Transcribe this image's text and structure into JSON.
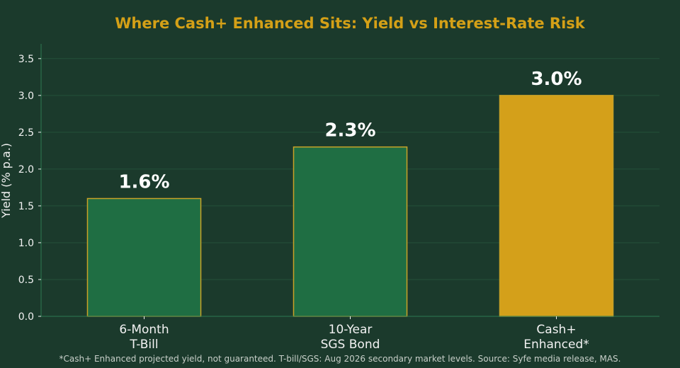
{
  "chart_data": {
    "type": "bar",
    "title": "Where Cash+ Enhanced Sits: Yield vs Interest-Rate Risk",
    "ylabel": "Yield (% p.a.)",
    "xlabel": "",
    "ylim": [
      0,
      3.7
    ],
    "yticks": [
      "0.0",
      "0.5",
      "1.0",
      "1.5",
      "2.0",
      "2.5",
      "3.0",
      "3.5"
    ],
    "categories": [
      [
        "6-Month",
        "T-Bill"
      ],
      [
        "10-Year",
        "SGS Bond"
      ],
      [
        "Cash+",
        "Enhanced*"
      ]
    ],
    "values": [
      1.6,
      2.3,
      3.0
    ],
    "data_labels": [
      "1.6%",
      "2.3%",
      "3.0%"
    ],
    "colors": [
      "#1f6e43",
      "#1f6e43",
      "#d4a01a"
    ],
    "edge_color": "#c9a227",
    "grid": true
  },
  "footnote": "*Cash+ Enhanced projected yield, not guaranteed. T-bill/SGS: Aug 2026 secondary market levels. Source: Syfe media release, MAS."
}
